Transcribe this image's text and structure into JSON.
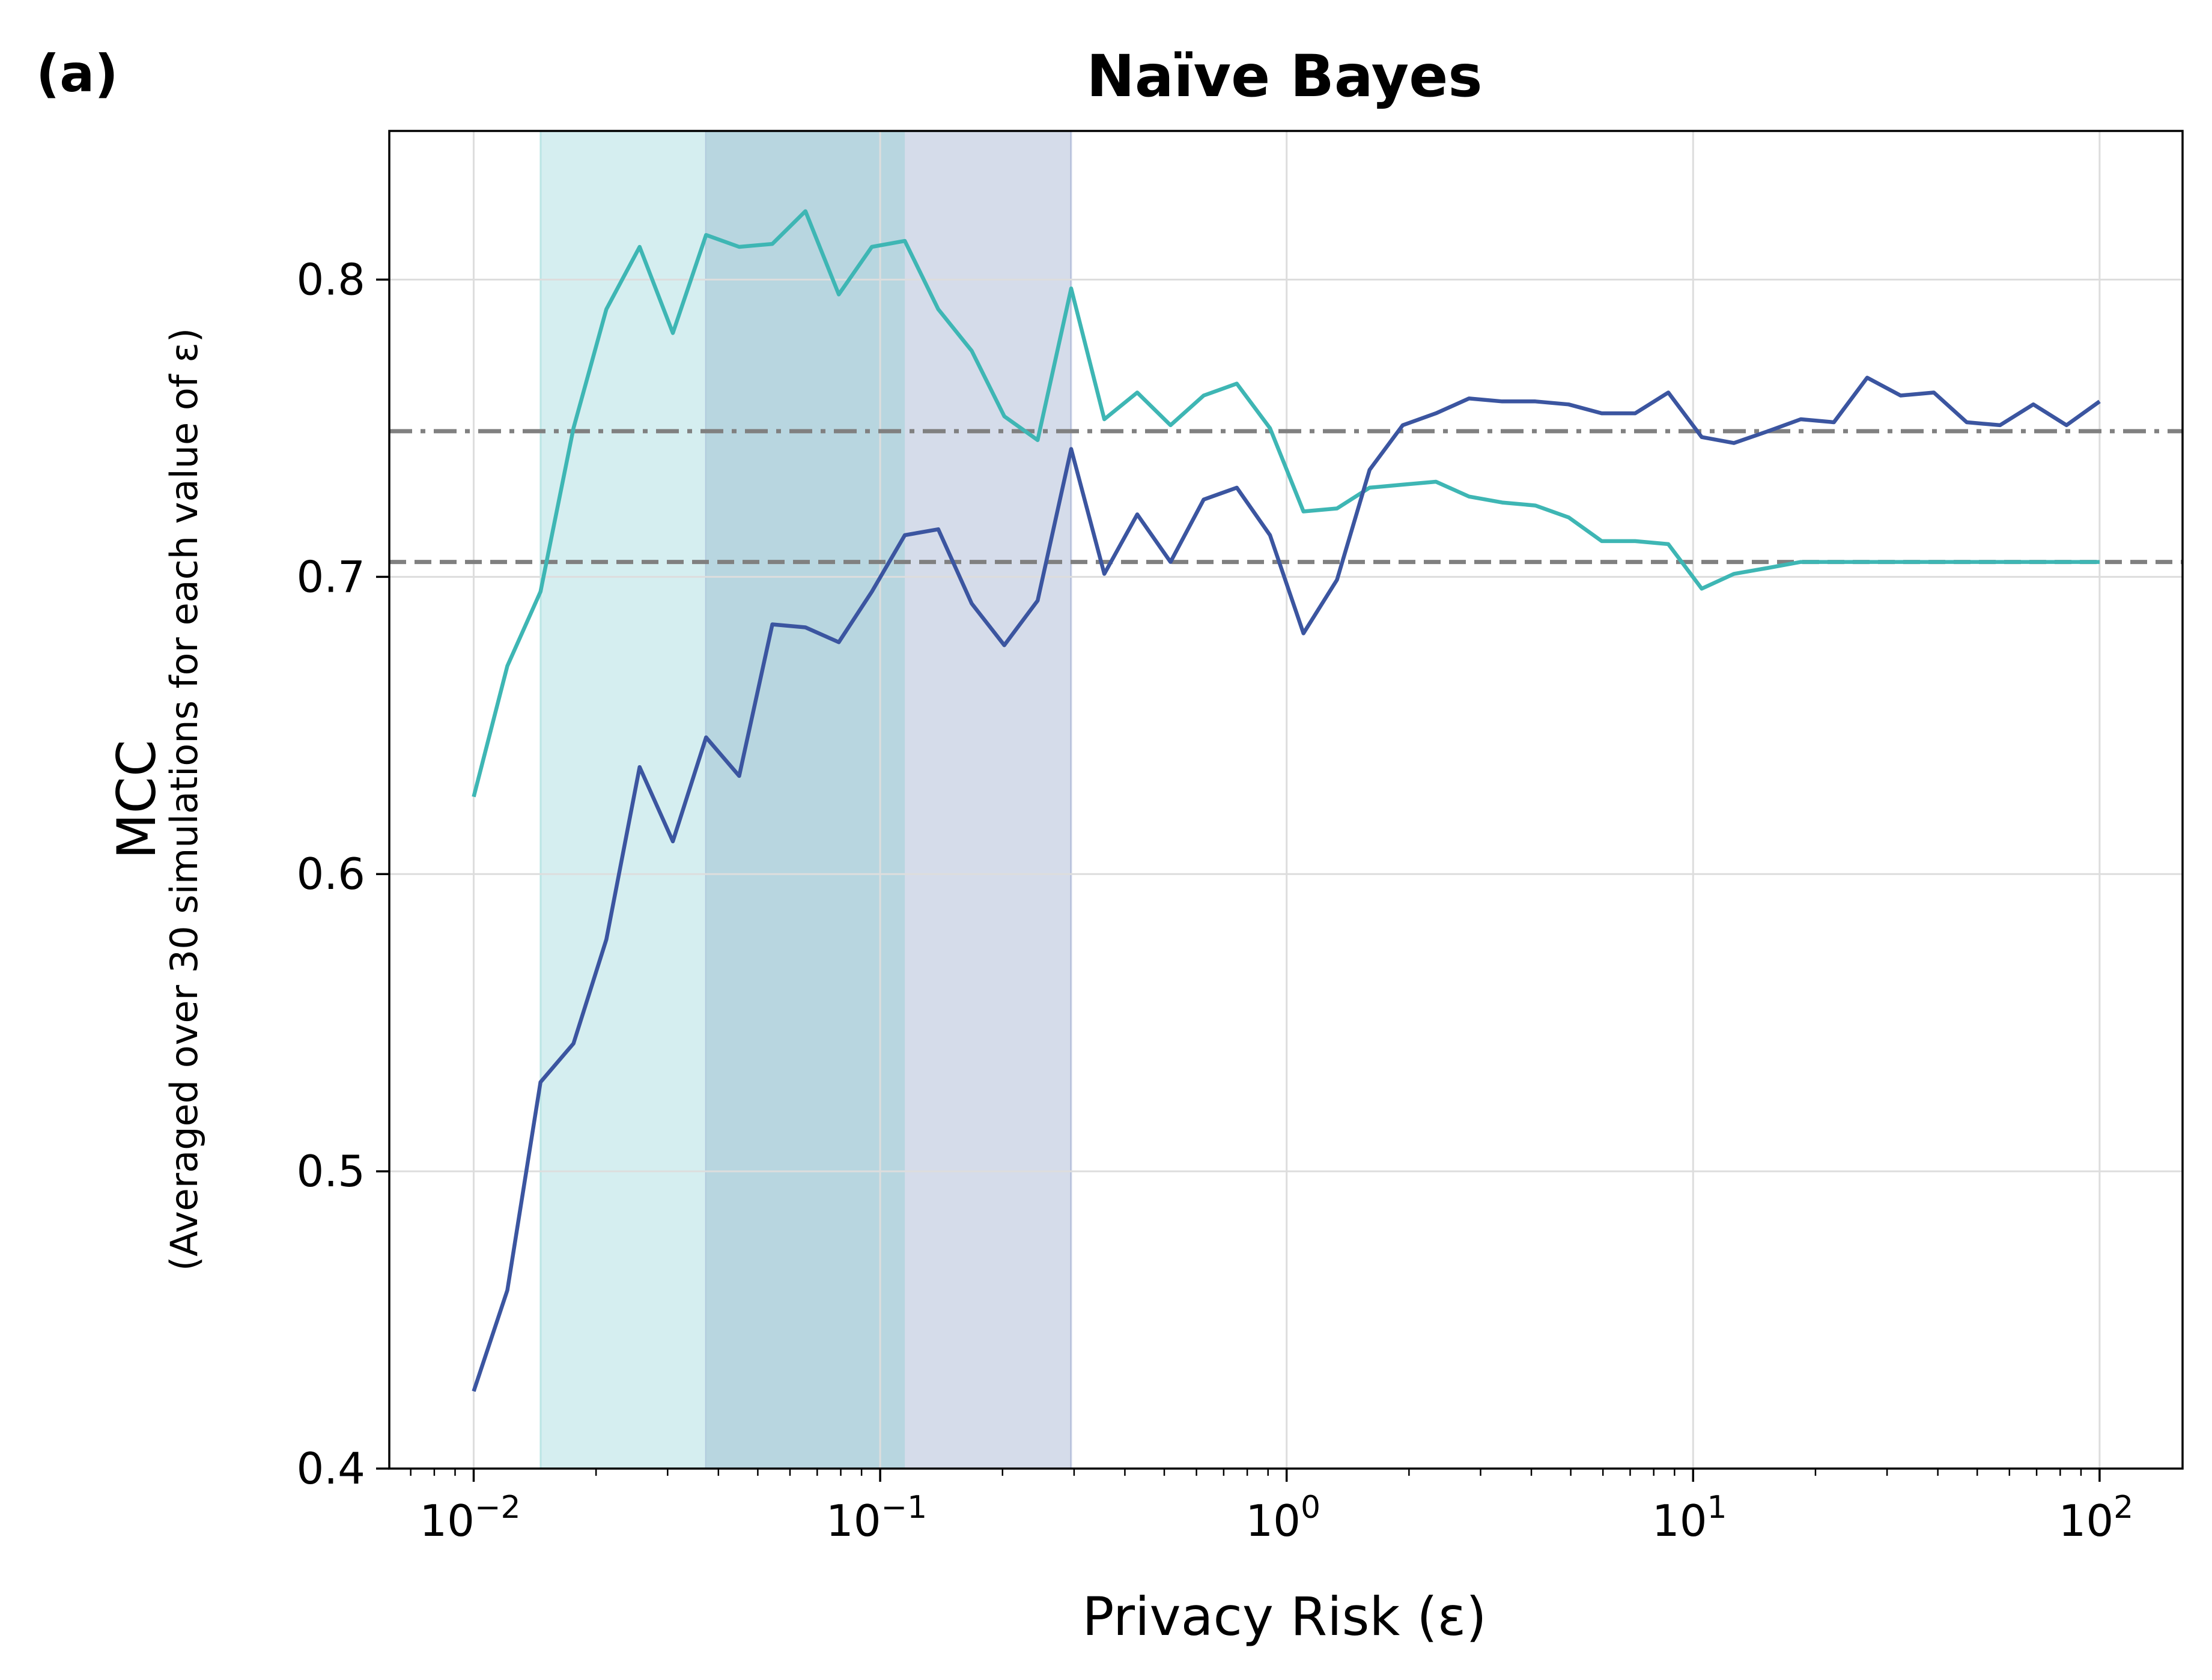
{
  "panel_label": "(a)",
  "colors": {
    "dark_series": "#3b55a0",
    "light_series": "#3eb6b4",
    "dark_fill": "#d5dcea",
    "light_fill": "#d5eef0",
    "overlap_fill": "#b8d6e0",
    "reference_lines": "#808080",
    "grid": "#dddddd"
  },
  "chart_data": {
    "type": "line",
    "title": "Naïve Bayes",
    "xlabel": "Privacy Risk (ε)",
    "ylabel": "MCC",
    "ylabel_sub": "(Averaged over 30 simulations for each value of ε)",
    "xscale": "log",
    "xlim": [
      0.0062,
      160
    ],
    "ylim": [
      0.4,
      0.85
    ],
    "grid": true,
    "x_ticks": [
      {
        "value": 0.01,
        "base": "10",
        "exp": "−2"
      },
      {
        "value": 0.1,
        "base": "10",
        "exp": "−1"
      },
      {
        "value": 1,
        "base": "10",
        "exp": "0"
      },
      {
        "value": 10,
        "base": "10",
        "exp": "1"
      },
      {
        "value": 100,
        "base": "10",
        "exp": "2"
      }
    ],
    "y_ticks": [
      {
        "value": 0.4,
        "label": "0.4"
      },
      {
        "value": 0.5,
        "label": "0.5"
      },
      {
        "value": 0.6,
        "label": "0.6"
      },
      {
        "value": 0.7,
        "label": "0.7"
      },
      {
        "value": 0.8,
        "label": "0.8"
      }
    ],
    "x": [
      0.01,
      0.0121,
      0.0146,
      0.0176,
      0.0212,
      0.0256,
      0.0309,
      0.0373,
      0.045,
      0.0543,
      0.0655,
      0.0791,
      0.0954,
      0.115,
      0.139,
      0.168,
      0.202,
      0.244,
      0.295,
      0.356,
      0.429,
      0.518,
      0.625,
      0.754,
      0.91,
      1.1,
      1.33,
      1.6,
      1.93,
      2.33,
      2.81,
      3.39,
      4.09,
      4.94,
      5.96,
      7.2,
      8.69,
      10.5,
      12.6,
      15.3,
      18.4,
      22.2,
      26.8,
      32.4,
      39.1,
      47.1,
      56.9,
      68.7,
      82.9,
      100
    ],
    "series": [
      {
        "color": "#3b55a0",
        "values": [
          0.426,
          0.46,
          0.53,
          0.543,
          0.578,
          0.636,
          0.611,
          0.646,
          0.633,
          0.684,
          0.683,
          0.678,
          0.695,
          0.714,
          0.716,
          0.691,
          0.677,
          0.692,
          0.743,
          0.701,
          0.721,
          0.705,
          0.726,
          0.73,
          0.714,
          0.681,
          0.699,
          0.736,
          0.751,
          0.755,
          0.76,
          0.759,
          0.759,
          0.758,
          0.755,
          0.755,
          0.762,
          0.747,
          0.745,
          0.749,
          0.753,
          0.752,
          0.767,
          0.761,
          0.762,
          0.752,
          0.751,
          0.758,
          0.751,
          0.759
        ]
      },
      {
        "color": "#3eb6b4",
        "values": [
          0.626,
          0.67,
          0.695,
          0.75,
          0.79,
          0.811,
          0.782,
          0.815,
          0.811,
          0.812,
          0.823,
          0.795,
          0.811,
          0.813,
          0.79,
          0.776,
          0.754,
          0.746,
          0.797,
          0.753,
          0.762,
          0.751,
          0.761,
          0.765,
          0.75,
          0.722,
          0.723,
          0.73,
          0.731,
          0.732,
          0.727,
          0.725,
          0.724,
          0.72,
          0.712,
          0.712,
          0.711,
          0.696,
          0.701,
          0.703,
          0.705,
          0.705,
          0.705,
          0.705,
          0.705,
          0.705,
          0.705,
          0.705,
          0.705,
          0.705
        ]
      }
    ],
    "reference_lines": [
      {
        "style": "dash-dot",
        "y": 0.749
      },
      {
        "style": "dashed",
        "y": 0.705
      }
    ],
    "shaded_regions": [
      {
        "color": "#3eb6b4",
        "x_from": 0.0146,
        "x_to": 0.115
      },
      {
        "color": "#3b55a0",
        "x_from": 0.0373,
        "x_to": 0.295
      }
    ]
  }
}
